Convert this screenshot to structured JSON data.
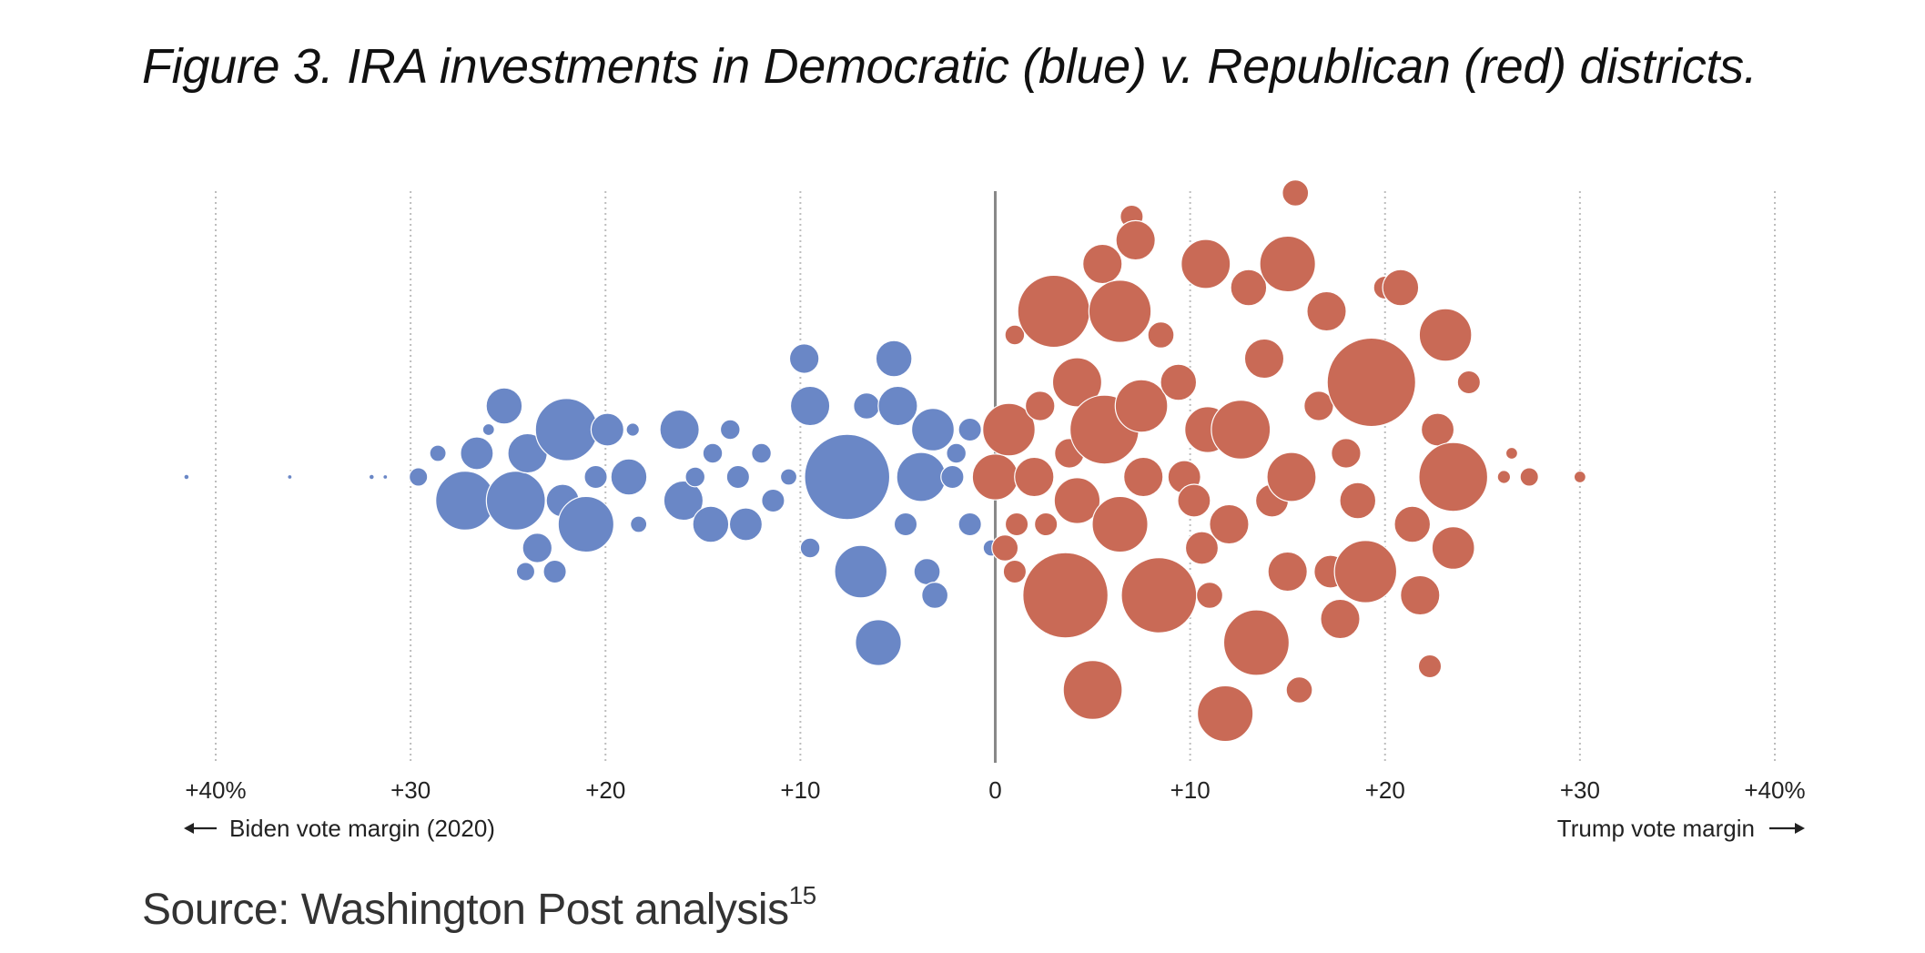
{
  "title": "Figure 3. IRA investments in Democratic (blue) v. Republican (red) districts.",
  "source": {
    "text": "Source: Washington Post analysis",
    "footnote": "15"
  },
  "chart_data": {
    "type": "scatter",
    "subtype": "beeswarm",
    "xlim": [
      -40,
      40
    ],
    "x_ticks": [
      {
        "value": -40,
        "label": "+40%"
      },
      {
        "value": -30,
        "label": "+30"
      },
      {
        "value": -20,
        "label": "+20"
      },
      {
        "value": -10,
        "label": "+10"
      },
      {
        "value": 0,
        "label": "0"
      },
      {
        "value": 10,
        "label": "+10"
      },
      {
        "value": 20,
        "label": "+20"
      },
      {
        "value": 30,
        "label": "+30"
      },
      {
        "value": 40,
        "label": "+40%"
      }
    ],
    "left_axis_label": "Biden vote margin (2020)",
    "right_axis_label": "Trump vote margin",
    "grid": "vertical dotted",
    "zero_line": true,
    "colors": {
      "democratic": "#6a87c6",
      "republican": "#c96a56",
      "grid": "#bdbdbd",
      "zero_line": "#888888"
    },
    "series": [
      {
        "party": "democratic",
        "points": [
          {
            "x": -41.5,
            "lane": 0,
            "size": 0.08
          },
          {
            "x": -36.2,
            "lane": 0,
            "size": 0.06
          },
          {
            "x": -32.0,
            "lane": 0,
            "size": 0.08
          },
          {
            "x": -31.3,
            "lane": 0,
            "size": 0.05
          },
          {
            "x": -29.6,
            "lane": 0,
            "size": 0.28
          },
          {
            "x": -28.6,
            "lane": 1,
            "size": 0.25
          },
          {
            "x": -27.2,
            "lane": -1,
            "size": 0.9
          },
          {
            "x": -26.6,
            "lane": 1,
            "size": 0.5
          },
          {
            "x": -26.0,
            "lane": 2,
            "size": 0.18
          },
          {
            "x": -25.2,
            "lane": 3,
            "size": 0.55
          },
          {
            "x": -24.6,
            "lane": -1,
            "size": 0.9
          },
          {
            "x": -24.0,
            "lane": 1,
            "size": 0.6
          },
          {
            "x": -23.5,
            "lane": -3,
            "size": 0.45
          },
          {
            "x": -24.1,
            "lane": -4,
            "size": 0.28
          },
          {
            "x": -22.6,
            "lane": -4,
            "size": 0.35
          },
          {
            "x": -22.0,
            "lane": 2,
            "size": 0.95
          },
          {
            "x": -22.2,
            "lane": -1,
            "size": 0.5
          },
          {
            "x": -21.0,
            "lane": -2,
            "size": 0.85
          },
          {
            "x": -20.5,
            "lane": 0,
            "size": 0.35
          },
          {
            "x": -19.9,
            "lane": 2,
            "size": 0.5
          },
          {
            "x": -18.8,
            "lane": 0,
            "size": 0.55
          },
          {
            "x": -18.6,
            "lane": 2,
            "size": 0.2
          },
          {
            "x": -18.3,
            "lane": -2,
            "size": 0.25
          },
          {
            "x": -16.0,
            "lane": -1,
            "size": 0.6
          },
          {
            "x": -16.2,
            "lane": 2,
            "size": 0.6
          },
          {
            "x": -15.4,
            "lane": 0,
            "size": 0.3
          },
          {
            "x": -14.6,
            "lane": -2,
            "size": 0.55
          },
          {
            "x": -14.5,
            "lane": 1,
            "size": 0.3
          },
          {
            "x": -13.6,
            "lane": 2,
            "size": 0.3
          },
          {
            "x": -13.2,
            "lane": 0,
            "size": 0.35
          },
          {
            "x": -12.8,
            "lane": -2,
            "size": 0.5
          },
          {
            "x": -12.0,
            "lane": 1,
            "size": 0.3
          },
          {
            "x": -11.4,
            "lane": -1,
            "size": 0.35
          },
          {
            "x": -10.6,
            "lane": 0,
            "size": 0.25
          },
          {
            "x": -9.5,
            "lane": -3,
            "size": 0.3
          },
          {
            "x": -9.8,
            "lane": 5,
            "size": 0.45
          },
          {
            "x": -9.5,
            "lane": 3,
            "size": 0.6
          },
          {
            "x": -7.6,
            "lane": 0,
            "size": 1.3
          },
          {
            "x": -6.6,
            "lane": 3,
            "size": 0.4
          },
          {
            "x": -6.9,
            "lane": -4,
            "size": 0.8
          },
          {
            "x": -6.0,
            "lane": -7,
            "size": 0.7
          },
          {
            "x": -5.2,
            "lane": 5,
            "size": 0.55
          },
          {
            "x": -5.0,
            "lane": 3,
            "size": 0.6
          },
          {
            "x": -4.6,
            "lane": -2,
            "size": 0.35
          },
          {
            "x": -3.8,
            "lane": 0,
            "size": 0.75
          },
          {
            "x": -3.2,
            "lane": 2,
            "size": 0.65
          },
          {
            "x": -3.5,
            "lane": -4,
            "size": 0.4
          },
          {
            "x": -3.1,
            "lane": -5,
            "size": 0.4
          },
          {
            "x": -2.2,
            "lane": 0,
            "size": 0.35
          },
          {
            "x": -2.0,
            "lane": 1,
            "size": 0.3
          },
          {
            "x": -1.3,
            "lane": 2,
            "size": 0.35
          },
          {
            "x": -1.3,
            "lane": -2,
            "size": 0.35
          },
          {
            "x": -0.5,
            "lane": 0,
            "size": 0.25
          },
          {
            "x": -0.2,
            "lane": -3,
            "size": 0.25
          }
        ]
      },
      {
        "party": "republican",
        "points": [
          {
            "x": 0.0,
            "lane": 0,
            "size": 0.7
          },
          {
            "x": 0.7,
            "lane": 2,
            "size": 0.8
          },
          {
            "x": 1.0,
            "lane": 6,
            "size": 0.3
          },
          {
            "x": 1.1,
            "lane": -2,
            "size": 0.35
          },
          {
            "x": 0.5,
            "lane": -3,
            "size": 0.4
          },
          {
            "x": 1.0,
            "lane": -4,
            "size": 0.35
          },
          {
            "x": 2.0,
            "lane": 0,
            "size": 0.6
          },
          {
            "x": 2.3,
            "lane": 3,
            "size": 0.45
          },
          {
            "x": 2.6,
            "lane": -2,
            "size": 0.35
          },
          {
            "x": 3.0,
            "lane": 7,
            "size": 1.1
          },
          {
            "x": 3.6,
            "lane": -5,
            "size": 1.3
          },
          {
            "x": 3.8,
            "lane": 1,
            "size": 0.45
          },
          {
            "x": 4.2,
            "lane": 4,
            "size": 0.75
          },
          {
            "x": 4.2,
            "lane": -1,
            "size": 0.7
          },
          {
            "x": 5.0,
            "lane": -9,
            "size": 0.9
          },
          {
            "x": 5.5,
            "lane": 9,
            "size": 0.6
          },
          {
            "x": 5.6,
            "lane": 2,
            "size": 1.05
          },
          {
            "x": 6.4,
            "lane": 7,
            "size": 0.95
          },
          {
            "x": 6.4,
            "lane": -2,
            "size": 0.85
          },
          {
            "x": 7.0,
            "lane": 11,
            "size": 0.35
          },
          {
            "x": 7.2,
            "lane": 10,
            "size": 0.6
          },
          {
            "x": 7.5,
            "lane": 3,
            "size": 0.8
          },
          {
            "x": 7.6,
            "lane": 0,
            "size": 0.6
          },
          {
            "x": 8.4,
            "lane": -5,
            "size": 1.15
          },
          {
            "x": 8.5,
            "lane": 6,
            "size": 0.4
          },
          {
            "x": 9.4,
            "lane": 4,
            "size": 0.55
          },
          {
            "x": 9.7,
            "lane": 0,
            "size": 0.5
          },
          {
            "x": 10.2,
            "lane": -1,
            "size": 0.5
          },
          {
            "x": 10.6,
            "lane": -3,
            "size": 0.5
          },
          {
            "x": 10.8,
            "lane": 9,
            "size": 0.75
          },
          {
            "x": 10.9,
            "lane": 2,
            "size": 0.7
          },
          {
            "x": 11.0,
            "lane": -5,
            "size": 0.4
          },
          {
            "x": 11.8,
            "lane": -10,
            "size": 0.85
          },
          {
            "x": 12.0,
            "lane": -2,
            "size": 0.6
          },
          {
            "x": 12.6,
            "lane": 2,
            "size": 0.9
          },
          {
            "x": 13.0,
            "lane": 8,
            "size": 0.55
          },
          {
            "x": 13.4,
            "lane": -7,
            "size": 1.0
          },
          {
            "x": 13.8,
            "lane": 5,
            "size": 0.6
          },
          {
            "x": 14.2,
            "lane": -1,
            "size": 0.5
          },
          {
            "x": 15.0,
            "lane": 9,
            "size": 0.85
          },
          {
            "x": 15.2,
            "lane": 0,
            "size": 0.75
          },
          {
            "x": 15.0,
            "lane": -4,
            "size": 0.6
          },
          {
            "x": 15.4,
            "lane": 12,
            "size": 0.4
          },
          {
            "x": 15.6,
            "lane": -9,
            "size": 0.4
          },
          {
            "x": 16.6,
            "lane": 3,
            "size": 0.45
          },
          {
            "x": 17.0,
            "lane": 7,
            "size": 0.6
          },
          {
            "x": 17.2,
            "lane": -4,
            "size": 0.5
          },
          {
            "x": 17.7,
            "lane": -6,
            "size": 0.6
          },
          {
            "x": 18.0,
            "lane": 1,
            "size": 0.45
          },
          {
            "x": 18.6,
            "lane": -1,
            "size": 0.55
          },
          {
            "x": 19.0,
            "lane": -4,
            "size": 0.95
          },
          {
            "x": 19.3,
            "lane": 4,
            "size": 1.35
          },
          {
            "x": 20.0,
            "lane": 8,
            "size": 0.35
          },
          {
            "x": 20.8,
            "lane": 8,
            "size": 0.55
          },
          {
            "x": 21.4,
            "lane": -2,
            "size": 0.55
          },
          {
            "x": 21.8,
            "lane": -5,
            "size": 0.6
          },
          {
            "x": 22.3,
            "lane": -8,
            "size": 0.35
          },
          {
            "x": 22.7,
            "lane": 2,
            "size": 0.5
          },
          {
            "x": 23.1,
            "lane": 6,
            "size": 0.8
          },
          {
            "x": 23.5,
            "lane": 0,
            "size": 1.05
          },
          {
            "x": 23.5,
            "lane": -3,
            "size": 0.65
          },
          {
            "x": 24.3,
            "lane": 4,
            "size": 0.35
          },
          {
            "x": 26.1,
            "lane": 0,
            "size": 0.2
          },
          {
            "x": 26.5,
            "lane": 1,
            "size": 0.18
          },
          {
            "x": 27.4,
            "lane": 0,
            "size": 0.28
          },
          {
            "x": 30.0,
            "lane": 0,
            "size": 0.18
          }
        ]
      }
    ]
  }
}
